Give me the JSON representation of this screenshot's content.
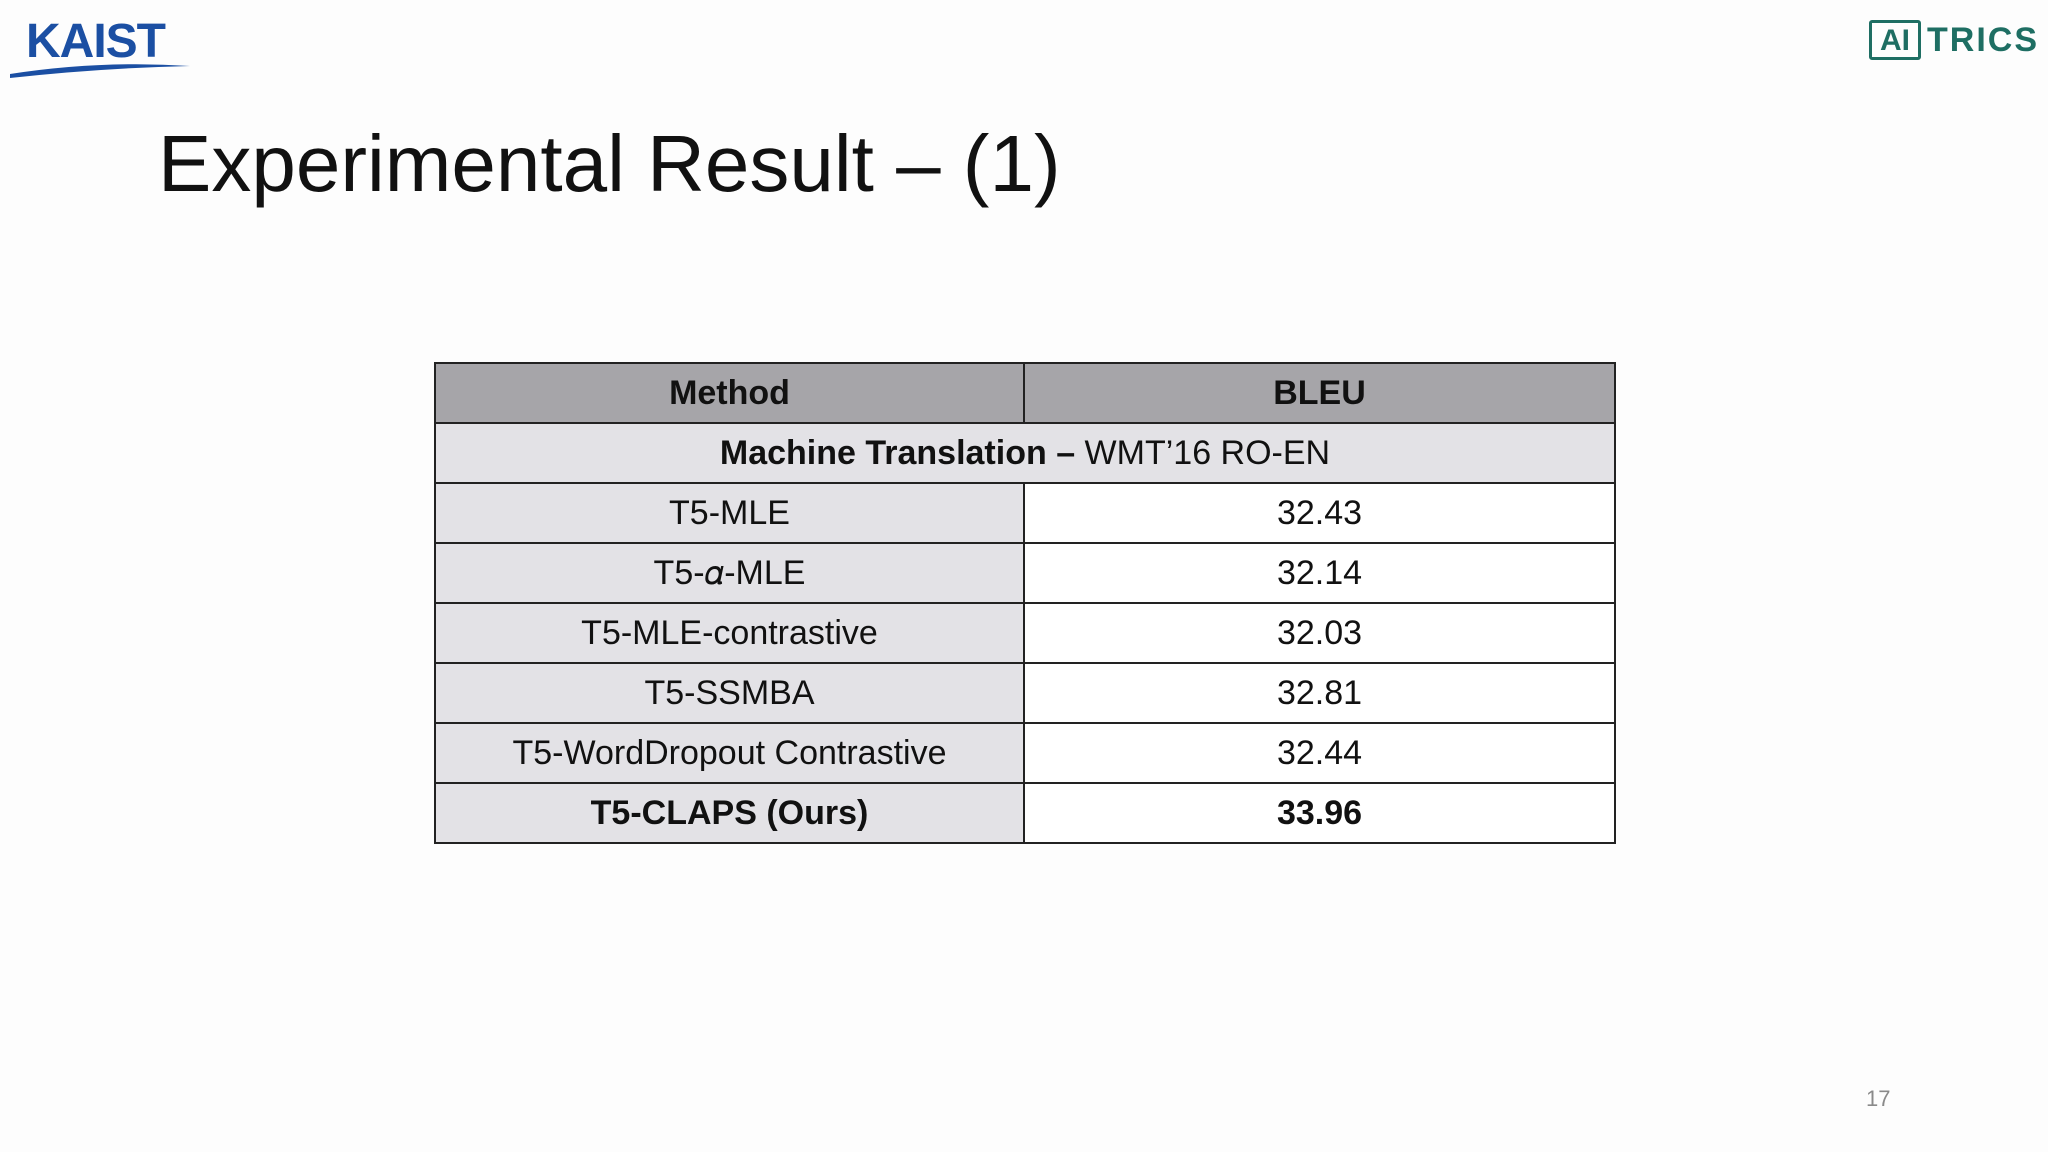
{
  "logos": {
    "left_text": "KAIST",
    "right_boxed": "AI",
    "right_text": "TRICS"
  },
  "slide": {
    "title": "Experimental Result – (1)",
    "page_number": "17"
  },
  "table": {
    "headers": [
      "Method",
      "BLEU"
    ],
    "section": {
      "bold_part": "Machine Translation –",
      "normal_part": " WMT’16 RO-EN"
    },
    "rows": [
      {
        "method": "T5-MLE",
        "bleu": "32.43",
        "bold": false
      },
      {
        "method": "T5-𝛼-MLE",
        "bleu": "32.14",
        "bold": false
      },
      {
        "method": "T5-MLE-contrastive",
        "bleu": "32.03",
        "bold": false
      },
      {
        "method": "T5-SSMBA",
        "bleu": "32.81",
        "bold": false
      },
      {
        "method": "T5-WordDropout Contrastive",
        "bleu": "32.44",
        "bold": false
      },
      {
        "method": "T5-CLAPS (Ours)",
        "bleu": "33.96",
        "bold": true
      }
    ]
  },
  "colors": {
    "kaist_blue": "#1b4fa3",
    "aitrics_green": "#1e6e63",
    "header_gray": "#a6a5a9",
    "row_gray": "#e3e2e6"
  }
}
